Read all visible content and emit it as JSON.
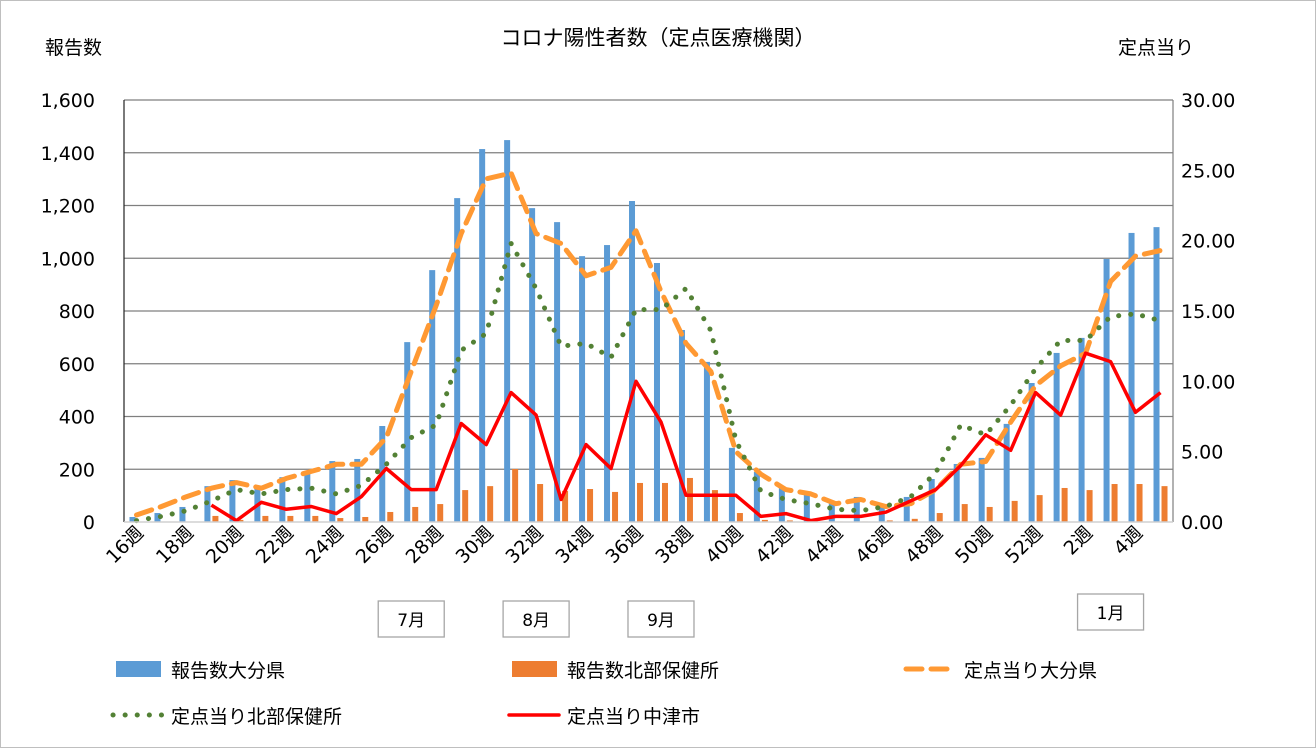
{
  "chart_data": {
    "type": "bar+line",
    "title": "コロナ陽性者数（定点医療機関）",
    "ylabel": "報告数",
    "y2label": "定点当り",
    "ylim": [
      0,
      1600
    ],
    "y2lim": [
      0,
      30
    ],
    "yticks": [
      "0",
      "200",
      "400",
      "600",
      "800",
      "1,000",
      "1,200",
      "1,400",
      "1,600"
    ],
    "y2ticks": [
      "0.00",
      "5.00",
      "10.00",
      "15.00",
      "20.00",
      "25.00",
      "30.00"
    ],
    "grid": true,
    "legend_position": "bottom",
    "categories": [
      "16週",
      "17週",
      "18週",
      "19週",
      "20週",
      "21週",
      "22週",
      "23週",
      "24週",
      "25週",
      "26週",
      "27週",
      "28週",
      "29週",
      "30週",
      "31週",
      "32週",
      "33週",
      "34週",
      "35週",
      "36週",
      "37週",
      "38週",
      "39週",
      "40週",
      "41週",
      "42週",
      "43週",
      "44週",
      "45週",
      "46週",
      "47週",
      "48週",
      "49週",
      "50週",
      "51週",
      "52週",
      "1週",
      "2週",
      "3週",
      "4週",
      "5週"
    ],
    "tick_labels": [
      "16週",
      "18週",
      "20週",
      "22週",
      "24週",
      "26週",
      "28週",
      "30週",
      "32週",
      "34週",
      "36週",
      "38週",
      "40週",
      "42週",
      "44週",
      "46週",
      "48週",
      "50週",
      "52週",
      "2週",
      "4週"
    ],
    "month_labels": [
      {
        "label": "7月",
        "week": "27週"
      },
      {
        "label": "8月",
        "week": "32週"
      },
      {
        "label": "9月",
        "week": "37週"
      },
      {
        "label": "1月",
        "week": "3週"
      }
    ],
    "series": [
      {
        "name": "報告数大分県",
        "kind": "bar",
        "axis": "left",
        "color": "#5b9bd5",
        "values": [
          19,
          34,
          57,
          136,
          159,
          128,
          170,
          193,
          231,
          239,
          364,
          682,
          955,
          1228,
          1414,
          1448,
          1190,
          1137,
          1008,
          1050,
          1217,
          982,
          728,
          607,
          281,
          190,
          129,
          110,
          80,
          95,
          64,
          95,
          163,
          220,
          243,
          372,
          527,
          641,
          698,
          997,
          1096,
          1118
        ]
      },
      {
        "name": "報告数北部保健所",
        "kind": "bar",
        "axis": "left",
        "color": "#ed7d31",
        "values": [
          0,
          0,
          0,
          23,
          8,
          23,
          23,
          23,
          15,
          19,
          38,
          57,
          68,
          121,
          136,
          201,
          144,
          118,
          125,
          114,
          148,
          148,
          167,
          121,
          34,
          8,
          6,
          5,
          2,
          2,
          6,
          12,
          34,
          68,
          57,
          80,
          102,
          129,
          121,
          144,
          144,
          136
        ]
      },
      {
        "name": "定点当り大分県",
        "kind": "line-dashed",
        "axis": "right",
        "color": "#ff9933",
        "values": [
          0.5,
          1.1,
          1.8,
          2.4,
          2.8,
          2.4,
          3.1,
          3.6,
          4.1,
          4.1,
          6.0,
          10.7,
          15.4,
          20.5,
          24.4,
          24.8,
          20.5,
          19.8,
          17.5,
          18.1,
          20.7,
          16.4,
          12.7,
          10.7,
          5.0,
          3.4,
          2.3,
          2.0,
          1.3,
          1.6,
          1.1,
          1.3,
          2.3,
          4.1,
          4.3,
          7.1,
          9.7,
          11.1,
          12.0,
          17.1,
          18.9,
          19.3
        ]
      },
      {
        "name": "定点当り北部保健所",
        "kind": "line-dotted",
        "axis": "right",
        "color": "#538135",
        "values": [
          0.1,
          0.4,
          0.8,
          1.5,
          2.3,
          2.0,
          2.3,
          2.4,
          2.0,
          2.6,
          4.1,
          6.0,
          6.9,
          12.2,
          13.4,
          19.8,
          16.6,
          12.5,
          12.7,
          11.7,
          15.1,
          15.1,
          16.6,
          13.6,
          5.8,
          2.2,
          1.6,
          1.3,
          0.9,
          0.8,
          1.1,
          1.8,
          3.5,
          6.9,
          6.2,
          8.3,
          10.9,
          12.9,
          12.9,
          14.6,
          14.8,
          14.3
        ]
      },
      {
        "name": "定点当り中津市",
        "kind": "line",
        "axis": "right",
        "color": "#ff0000",
        "values": [
          null,
          null,
          null,
          1.2,
          0.1,
          1.4,
          0.9,
          1.1,
          0.6,
          1.8,
          3.8,
          2.3,
          2.3,
          7.0,
          5.5,
          9.2,
          7.6,
          1.6,
          5.5,
          3.8,
          10.0,
          7.1,
          1.9,
          1.9,
          1.9,
          0.4,
          0.6,
          0.1,
          0.4,
          0.4,
          0.7,
          1.5,
          2.3,
          4.0,
          6.2,
          5.1,
          9.2,
          7.6,
          12.0,
          11.4,
          7.8,
          9.2
        ]
      }
    ]
  }
}
